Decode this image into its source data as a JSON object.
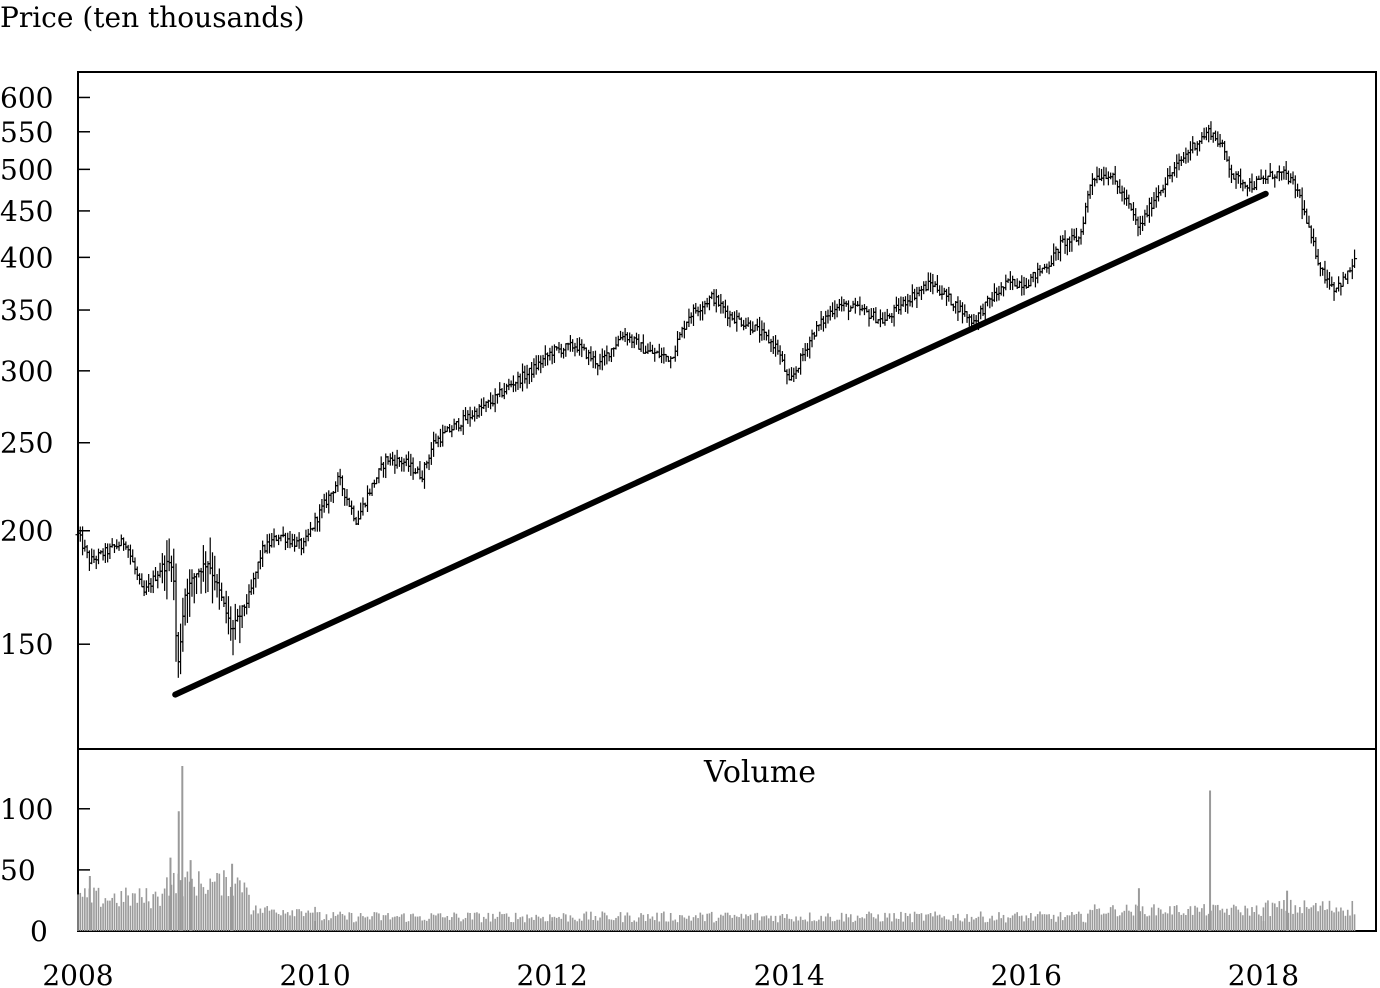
{
  "chart_data": {
    "type": "line",
    "subtype": "ohlc-with-volume",
    "ylabel": "Price (ten thousands)",
    "yscale": "log",
    "x_ticks": [
      "2008",
      "2010",
      "2012",
      "2014",
      "2016",
      "2018"
    ],
    "xlim": [
      2008.0,
      2018.95
    ],
    "price_ticks": [
      150,
      200,
      250,
      300,
      350,
      400,
      450,
      500,
      550,
      600
    ],
    "price_ylim": [
      115,
      640
    ],
    "price_series": {
      "x": [
        2008.0,
        2008.1,
        2008.25,
        2008.4,
        2008.55,
        2008.7,
        2008.8,
        2008.84,
        2008.9,
        2009.0,
        2009.1,
        2009.2,
        2009.3,
        2009.45,
        2009.55,
        2009.7,
        2009.9,
        2010.0,
        2010.2,
        2010.35,
        2010.45,
        2010.6,
        2010.75,
        2010.9,
        2011.0,
        2011.2,
        2011.35,
        2011.5,
        2011.65,
        2011.8,
        2012.0,
        2012.2,
        2012.4,
        2012.6,
        2012.8,
        2013.0,
        2013.15,
        2013.35,
        2013.5,
        2013.7,
        2013.9,
        2014.0,
        2014.2,
        2014.4,
        2014.6,
        2014.8,
        2015.0,
        2015.2,
        2015.4,
        2015.55,
        2015.7,
        2015.85,
        2016.0,
        2016.2,
        2016.3,
        2016.45,
        2016.55,
        2016.7,
        2016.85,
        2016.95,
        2017.1,
        2017.25,
        2017.4,
        2017.55,
        2017.65,
        2017.75,
        2017.9,
        2018.1,
        2018.2,
        2018.3,
        2018.4,
        2018.5,
        2018.6,
        2018.7,
        2018.78
      ],
      "close": [
        198,
        185,
        190,
        195,
        170,
        182,
        185,
        140,
        170,
        180,
        185,
        170,
        155,
        170,
        190,
        198,
        192,
        205,
        228,
        205,
        220,
        240,
        238,
        230,
        250,
        262,
        270,
        278,
        290,
        298,
        315,
        320,
        305,
        330,
        315,
        310,
        345,
        362,
        345,
        335,
        318,
        290,
        330,
        355,
        350,
        340,
        360,
        375,
        355,
        340,
        360,
        375,
        375,
        395,
        415,
        420,
        490,
        495,
        460,
        430,
        470,
        500,
        530,
        552,
        530,
        490,
        480,
        495,
        492,
        470,
        420,
        385,
        370,
        380,
        400
      ]
    },
    "trendline": {
      "x": [
        2008.82,
        2018.02
      ],
      "y": [
        132,
        470
      ]
    },
    "volume": {
      "title": "Volume",
      "ticks": [
        0,
        50,
        100
      ],
      "ylim": [
        0,
        135
      ],
      "spikes": [
        {
          "x": 2008.88,
          "value": 135
        },
        {
          "x": 2008.85,
          "value": 98
        },
        {
          "x": 2008.78,
          "value": 60
        },
        {
          "x": 2008.95,
          "value": 58
        },
        {
          "x": 2009.3,
          "value": 55
        },
        {
          "x": 2008.1,
          "value": 45
        },
        {
          "x": 2017.55,
          "value": 115
        },
        {
          "x": 2016.95,
          "value": 35
        },
        {
          "x": 2018.2,
          "value": 33
        }
      ]
    }
  }
}
